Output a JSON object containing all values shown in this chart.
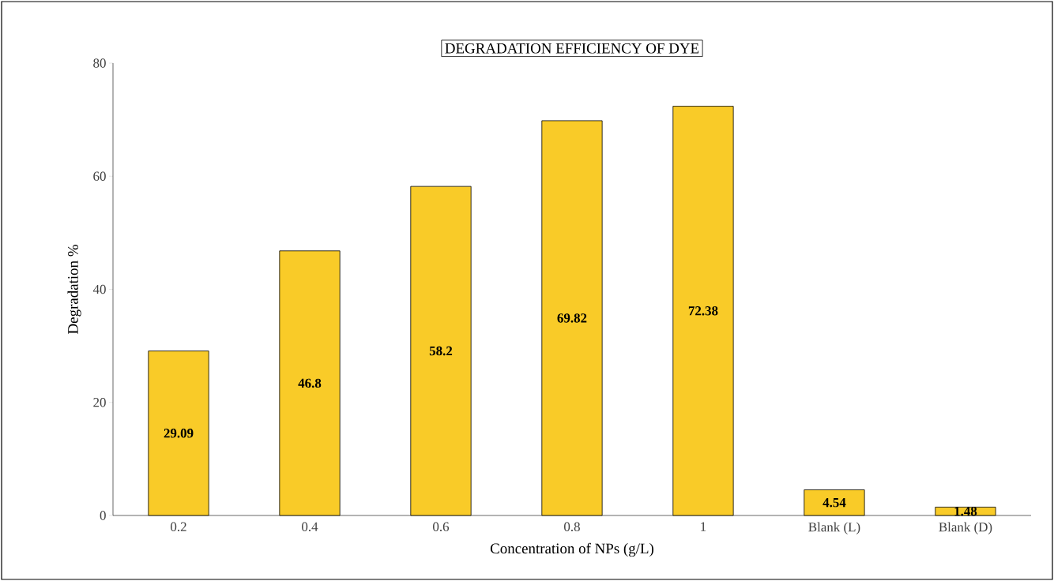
{
  "chart_data": {
    "type": "bar",
    "title": "DEGRADATION EFFICIENCY OF DYE",
    "xlabel": "Concentration of NPs (g/L)",
    "ylabel": "Degradation  %",
    "categories": [
      "0.2",
      "0.4",
      "0.6",
      "0.8",
      "1",
      "Blank (L)",
      "Blank (D)"
    ],
    "values": [
      29.09,
      46.8,
      58.2,
      69.82,
      72.38,
      4.54,
      1.48
    ],
    "color": "#f9cb28",
    "ylim": [
      0,
      80
    ],
    "yticks": [
      0,
      20,
      40,
      60,
      80
    ],
    "data_labels": true,
    "grid": false
  }
}
